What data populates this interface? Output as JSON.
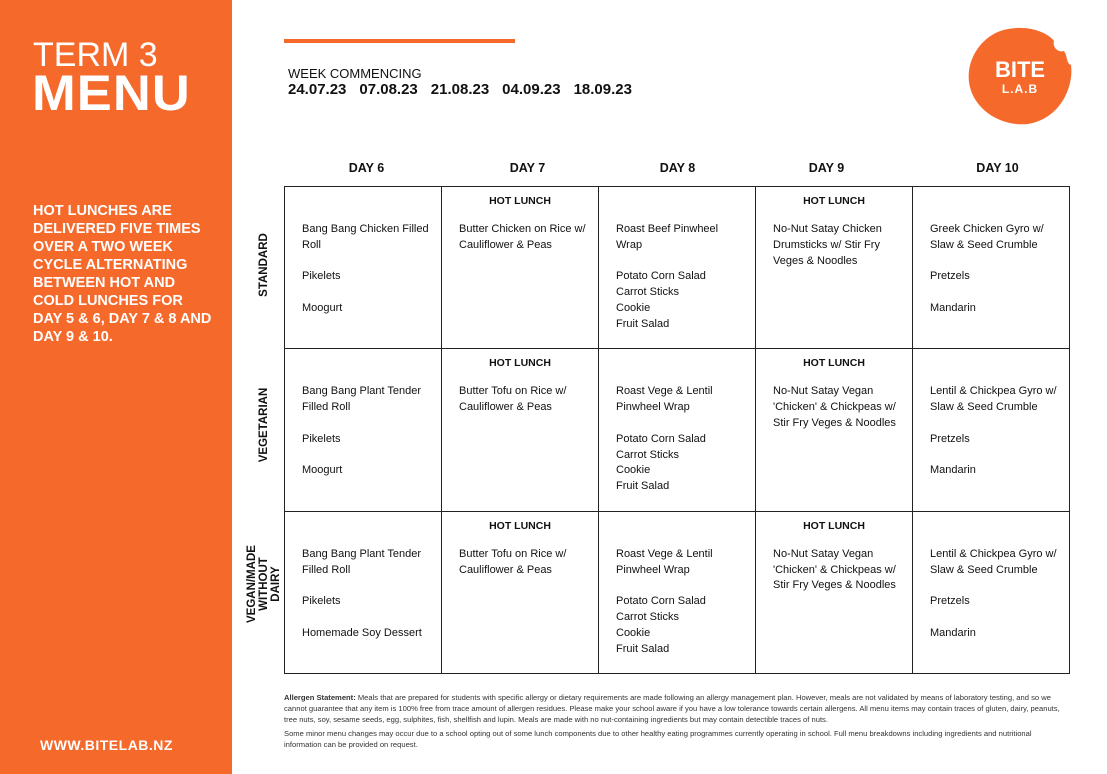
{
  "sidebar": {
    "term": "TERM 3",
    "title": "MENU",
    "intro": "HOT LUNCHES ARE DELIVERED FIVE TIMES OVER A TWO WEEK CYCLE ALTERNATING BETWEEN HOT AND COLD LUNCHES FOR DAY 5 & 6, DAY 7 & 8 AND DAY 9 & 10.",
    "website": "WWW.BITELAB.NZ"
  },
  "header": {
    "week_label": "WEEK COMMENCING",
    "dates": [
      "24.07.23",
      "07.08.23",
      "21.08.23",
      "04.09.23",
      "18.09.23"
    ]
  },
  "logo": {
    "line1": "BITE",
    "line2": "L.A.B"
  },
  "colors": {
    "brand": "#F5692B"
  },
  "days": [
    "DAY 6",
    "DAY 7",
    "DAY 8",
    "DAY 9",
    "DAY 10"
  ],
  "hot_label": "HOT LUNCH",
  "rows": [
    {
      "label": "STANDARD",
      "cells": [
        {
          "hot": false,
          "items": [
            "Bang Bang Chicken Filled Roll",
            "Pikelets",
            "Moogurt"
          ]
        },
        {
          "hot": true,
          "items": [
            "Butter Chicken on Rice w/ Cauliflower & Peas"
          ]
        },
        {
          "hot": false,
          "items": [
            "Roast Beef Pinwheel Wrap",
            "Potato Corn Salad\nCarrot Sticks\nCookie\nFruit Salad"
          ]
        },
        {
          "hot": true,
          "items": [
            "No-Nut Satay Chicken Drumsticks w/ Stir Fry Veges & Noodles"
          ]
        },
        {
          "hot": false,
          "items": [
            "Greek Chicken Gyro w/ Slaw & Seed Crumble",
            "Pretzels",
            "Mandarin"
          ]
        }
      ]
    },
    {
      "label": "VEGETARIAN",
      "cells": [
        {
          "hot": false,
          "items": [
            "Bang Bang Plant Tender Filled Roll",
            "Pikelets",
            "Moogurt"
          ]
        },
        {
          "hot": true,
          "items": [
            "Butter Tofu on Rice w/ Cauliflower & Peas"
          ]
        },
        {
          "hot": false,
          "items": [
            "Roast Vege & Lentil Pinwheel Wrap",
            "Potato Corn Salad\nCarrot Sticks\nCookie\nFruit Salad"
          ]
        },
        {
          "hot": true,
          "items": [
            "No-Nut Satay Vegan 'Chicken' & Chickpeas w/ Stir Fry Veges & Noodles"
          ]
        },
        {
          "hot": false,
          "items": [
            "Lentil & Chickpea Gyro w/ Slaw & Seed Crumble",
            "Pretzels",
            "Mandarin"
          ]
        }
      ]
    },
    {
      "label": "VEGAN/MADE WITHOUT DAIRY",
      "cells": [
        {
          "hot": false,
          "items": [
            "Bang Bang Plant Tender Filled Roll",
            "Pikelets",
            "Homemade Soy Dessert"
          ]
        },
        {
          "hot": true,
          "items": [
            "Butter Tofu on Rice w/ Cauliflower & Peas"
          ]
        },
        {
          "hot": false,
          "items": [
            "Roast Vege & Lentil Pinwheel Wrap",
            "Potato Corn Salad\nCarrot Sticks\nCookie\nFruit Salad"
          ]
        },
        {
          "hot": true,
          "items": [
            "No-Nut Satay Vegan 'Chicken' & Chickpeas w/ Stir Fry Veges & Noodles"
          ]
        },
        {
          "hot": false,
          "items": [
            "Lentil & Chickpea Gyro w/ Slaw & Seed Crumble",
            "Pretzels",
            "Mandarin"
          ]
        }
      ]
    }
  ],
  "footer": {
    "allergen_title": "Allergen Statement:",
    "allergen_text": " Meals that are prepared for students with specific allergy or dietary requirements are made following an allergy management plan. However, meals are not validated by means of laboratory testing, and so we cannot guarantee that any item is 100% free from trace amount of allergen residues. Please make your school aware if you have a low tolerance towards certain allergens. All menu items may contain traces of gluten, dairy, peanuts, tree nuts, soy, sesame seeds, egg, sulphites, fish, shellfish and lupin. Meals are made with no nut-containing ingredients but may contain detectible traces of nuts.",
    "note": "Some minor menu changes may occur due to a school opting out of some lunch components due to other healthy eating programmes currently operating in school. Full menu breakdowns including ingredients and nutritional information can be provided on request."
  }
}
